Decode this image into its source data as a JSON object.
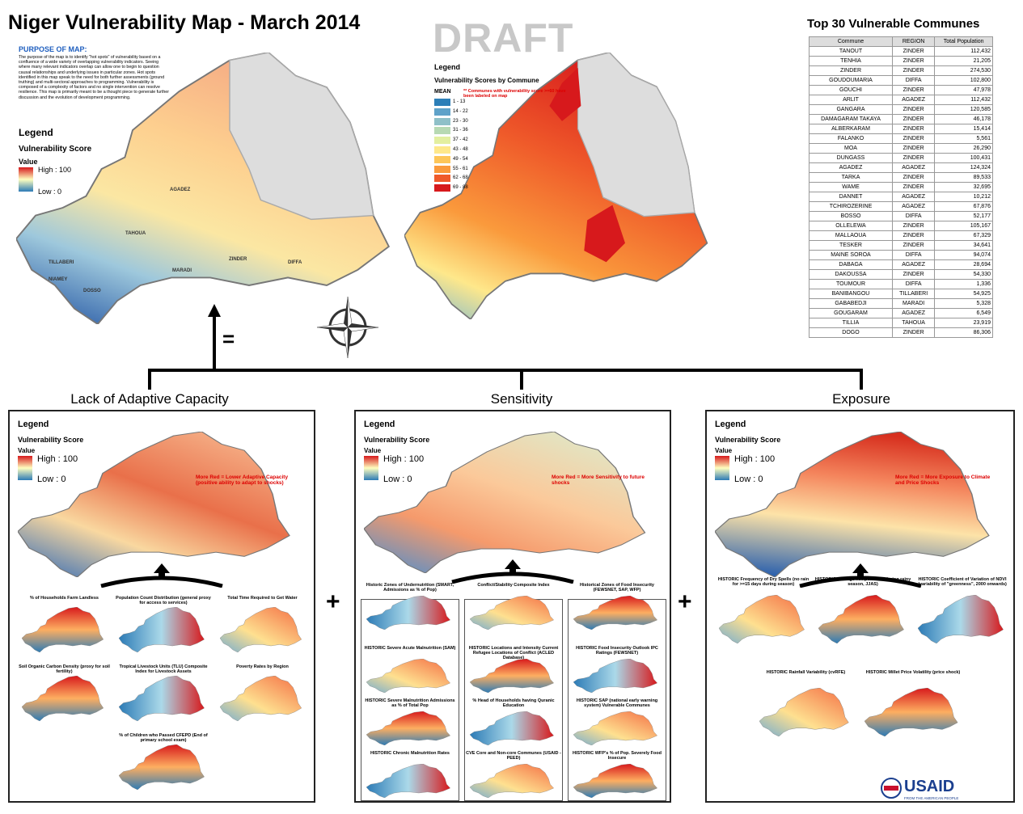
{
  "header": {
    "title": "Niger Vulnerability Map - March 2014",
    "draft": "DRAFT"
  },
  "purpose": {
    "heading": "PURPOSE OF MAP:",
    "text": "The purpose of the map is to identify \"hot spots\" of vulnerability based on a confluence of a wide variety of overlapping vulnerability indicators. Seeing where many relevant indicators overlap can allow one to begin to question causal relationships and underlying issues in particular zones. Hot spots identified in this map speak to the need for both further assessments (ground truthing) and multi-sectoral approaches to programming. Vulnerability is composed of a complexity of factors and no single intervention can resolve resilience. This map is primarily meant to be a thought piece to generate further discussion and the evolution of development programming."
  },
  "map_legend": {
    "title": "Legend",
    "subtitle": "Vulnerability Score",
    "value": "Value",
    "high": "High : 100",
    "low": "Low : 0"
  },
  "regions": [
    "AGADEZ",
    "TAHOUA",
    "TILLABERI",
    "NIAMEY",
    "DOSSO",
    "MARADI",
    "ZINDER",
    "DIFFA"
  ],
  "commune_legend": {
    "title": "Legend",
    "subtitle": "Vulnerability Scores by Commune",
    "mean": "MEAN",
    "note": "** Communes with vulnerability score >=60 have been labeled on map",
    "classes": [
      {
        "label": "1 - 13",
        "color": "#2c7fb8"
      },
      {
        "label": "14 - 22",
        "color": "#5fa2c9"
      },
      {
        "label": "23 - 30",
        "color": "#8fc0c8"
      },
      {
        "label": "31 - 36",
        "color": "#b7d9b3"
      },
      {
        "label": "37 - 42",
        "color": "#e3efa0"
      },
      {
        "label": "43 - 48",
        "color": "#fee88b"
      },
      {
        "label": "49 - 54",
        "color": "#fdc659"
      },
      {
        "label": "55 - 61",
        "color": "#fa9a3c"
      },
      {
        "label": "62 - 68",
        "color": "#ef5a2a"
      },
      {
        "label": "69 - 88",
        "color": "#d7191c"
      }
    ]
  },
  "table": {
    "title": "Top 30 Vulnerable Communes",
    "columns": [
      "Commune",
      "REGION",
      "Total Population"
    ],
    "rows": [
      [
        "TANOUT",
        "ZINDER",
        "112,432"
      ],
      [
        "TENHIA",
        "ZINDER",
        "21,205"
      ],
      [
        "ZINDER",
        "ZINDER",
        "274,530"
      ],
      [
        "GOUDOUMARIA",
        "DIFFA",
        "102,800"
      ],
      [
        "GOUCHI",
        "ZINDER",
        "47,978"
      ],
      [
        "ARLIT",
        "AGADEZ",
        "112,432"
      ],
      [
        "GANGARA",
        "ZINDER",
        "120,585"
      ],
      [
        "DAMAGARAM TAKAYA",
        "ZINDER",
        "46,178"
      ],
      [
        "ALBERKARAM",
        "ZINDER",
        "15,414"
      ],
      [
        "FALANKO",
        "ZINDER",
        "5,561"
      ],
      [
        "MOA",
        "ZINDER",
        "26,290"
      ],
      [
        "DUNGASS",
        "ZINDER",
        "100,431"
      ],
      [
        "AGADEZ",
        "AGADEZ",
        "124,324"
      ],
      [
        "TARKA",
        "ZINDER",
        "89,533"
      ],
      [
        "WAME",
        "ZINDER",
        "32,695"
      ],
      [
        "DANNET",
        "AGADEZ",
        "10,212"
      ],
      [
        "TCHIROZERINE",
        "AGADEZ",
        "67,876"
      ],
      [
        "BOSSO",
        "DIFFA",
        "52,177"
      ],
      [
        "OLLELEWA",
        "ZINDER",
        "105,167"
      ],
      [
        "MALLAOUA",
        "ZINDER",
        "67,329"
      ],
      [
        "TESKER",
        "ZINDER",
        "34,641"
      ],
      [
        "MAINE SOROA",
        "DIFFA",
        "94,074"
      ],
      [
        "DABAGA",
        "AGADEZ",
        "28,694"
      ],
      [
        "DAKOUSSA",
        "ZINDER",
        "54,330"
      ],
      [
        "TOUMOUR",
        "DIFFA",
        "1,336"
      ],
      [
        "BANIBANGOU",
        "TILLABERI",
        "54,925"
      ],
      [
        "GABABEDJI",
        "MARADI",
        "5,328"
      ],
      [
        "GOUGARAM",
        "AGADEZ",
        "6,549"
      ],
      [
        "TILLIA",
        "TAHOUA",
        "23,919"
      ],
      [
        "DOGO",
        "ZINDER",
        "86,306"
      ]
    ]
  },
  "equals": "=",
  "plus": "+",
  "panels": [
    {
      "title": "Lack of Adaptive Capacity",
      "annotation": "More Red = Lower Adaptive Capacity (positive ability to adapt to shocks)",
      "submaps": [
        "% of Households Farm Landless",
        "Population Count Distribution (general proxy for access to services)",
        "Total Time Required to Get Water",
        "Soil Organic Carbon Density (proxy for soil fertility)",
        "Tropical Livestock Units (TLU) Composite Index for Livestock Assets",
        "Poverty Rates by Region",
        "% of Children who Passed CFEPD (End of primary school exam)"
      ]
    },
    {
      "title": "Sensitivity",
      "annotation": "More Red = More Sensitivity to future shocks",
      "submaps": [
        "Historic Zones of Undernutrition (SMART, Admissions as % of Pop)",
        "HISTORIC Severe Acute Malnutrition (SAM)",
        "HISTORIC Severe Malnutrition Admissions as % of Total Pop",
        "HISTORIC Chronic Malnutrition Rates",
        "Conflict/Stability Composite Index",
        "HISTORIC Locations and Intensity Current Refugee Locations of Conflict (ACLED Database)",
        "% Head of Households having Quranic Education",
        "CVE Core and Non-core Communes (USAID - PEED)",
        "Historical Zones of Food Insecurity (FEWSNET, SAP, WFP)",
        "HISTORIC Food Insecurity Outlook IPC Ratings (FEWSNET)",
        "HISTORIC SAP (national early warning system) Vulnerable Communes",
        "HISTORIC WFP's % of Pop. Severely Food Insecure"
      ]
    },
    {
      "title": "Exposure",
      "annotation": "More Red = More Exposure to Climate and Price Shocks",
      "submaps": [
        "HISTORIC Frequency of Dry Spells (no rain for >=15 days during season)",
        "HISTORIC Average Temperature (during rainy season, JJAS)",
        "HISTORIC Coefficient of Variation of NDVI (variability of \"greenness\", 2000 onwards)",
        "HISTORIC Rainfall Variability (cvRFE)",
        "HISTORIC Millet Price Volatility (price shock)"
      ]
    }
  ],
  "footer": {
    "logo": "USAID",
    "tagline": "FROM THE AMERICAN PEOPLE"
  }
}
